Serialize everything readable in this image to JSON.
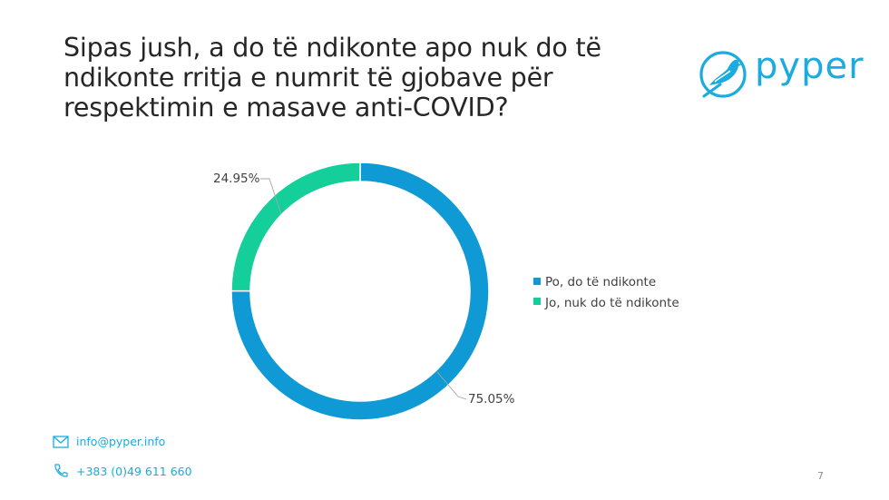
{
  "slide": {
    "title_lines": [
      "Sipas jush, a do të ndikonte apo nuk do të",
      "ndikonte rritja e numrit të gjobave për",
      "respektimin e masave anti-COVID?"
    ],
    "page_number": "7"
  },
  "logo": {
    "text": "pyper",
    "color": "#1aabe0"
  },
  "contact": {
    "email": "info@pyper.info",
    "phone": "+383 (0)49 611 660"
  },
  "chart_data": {
    "type": "pie",
    "style": "donut",
    "categories": [
      "Po, do të ndikonte",
      "Jo, nuk do të ndikonte"
    ],
    "values": [
      75.05,
      24.95
    ],
    "data_labels": [
      "75.05%",
      "24.95%"
    ],
    "colors": [
      "#0f9ad6",
      "#15cf9b"
    ],
    "legend_position": "right"
  }
}
